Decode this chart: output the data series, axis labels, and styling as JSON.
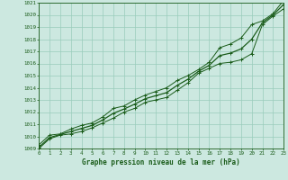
{
  "title": "Graphe pression niveau de la mer (hPa)",
  "bg_color": "#cce8e0",
  "grid_color": "#99ccbb",
  "line_color": "#1a5c1a",
  "x_values": [
    0,
    1,
    2,
    3,
    4,
    5,
    6,
    7,
    8,
    9,
    10,
    11,
    12,
    13,
    14,
    15,
    16,
    17,
    18,
    19,
    20,
    21,
    22,
    23
  ],
  "line_min": [
    1009.0,
    1009.8,
    1010.1,
    1010.2,
    1010.4,
    1010.7,
    1011.1,
    1011.5,
    1012.0,
    1012.3,
    1012.8,
    1013.0,
    1013.2,
    1013.8,
    1014.4,
    1015.2,
    1015.6,
    1016.0,
    1016.1,
    1016.3,
    1016.8,
    1019.2,
    1019.9,
    1020.5
  ],
  "line_max": [
    1009.3,
    1010.1,
    1010.2,
    1010.6,
    1010.9,
    1011.1,
    1011.6,
    1012.3,
    1012.5,
    1013.0,
    1013.4,
    1013.7,
    1014.0,
    1014.6,
    1015.0,
    1015.5,
    1016.1,
    1017.3,
    1017.6,
    1018.1,
    1019.2,
    1019.5,
    1020.1,
    1021.2
  ],
  "line_mean": [
    1009.1,
    1009.9,
    1010.15,
    1010.4,
    1010.65,
    1010.9,
    1011.35,
    1011.9,
    1012.25,
    1012.65,
    1013.1,
    1013.35,
    1013.6,
    1014.2,
    1014.7,
    1015.35,
    1015.85,
    1016.65,
    1016.85,
    1017.2,
    1018.0,
    1019.35,
    1020.0,
    1020.85
  ],
  "ylim_min": 1009,
  "ylim_max": 1021,
  "xlim_min": 0,
  "xlim_max": 23
}
